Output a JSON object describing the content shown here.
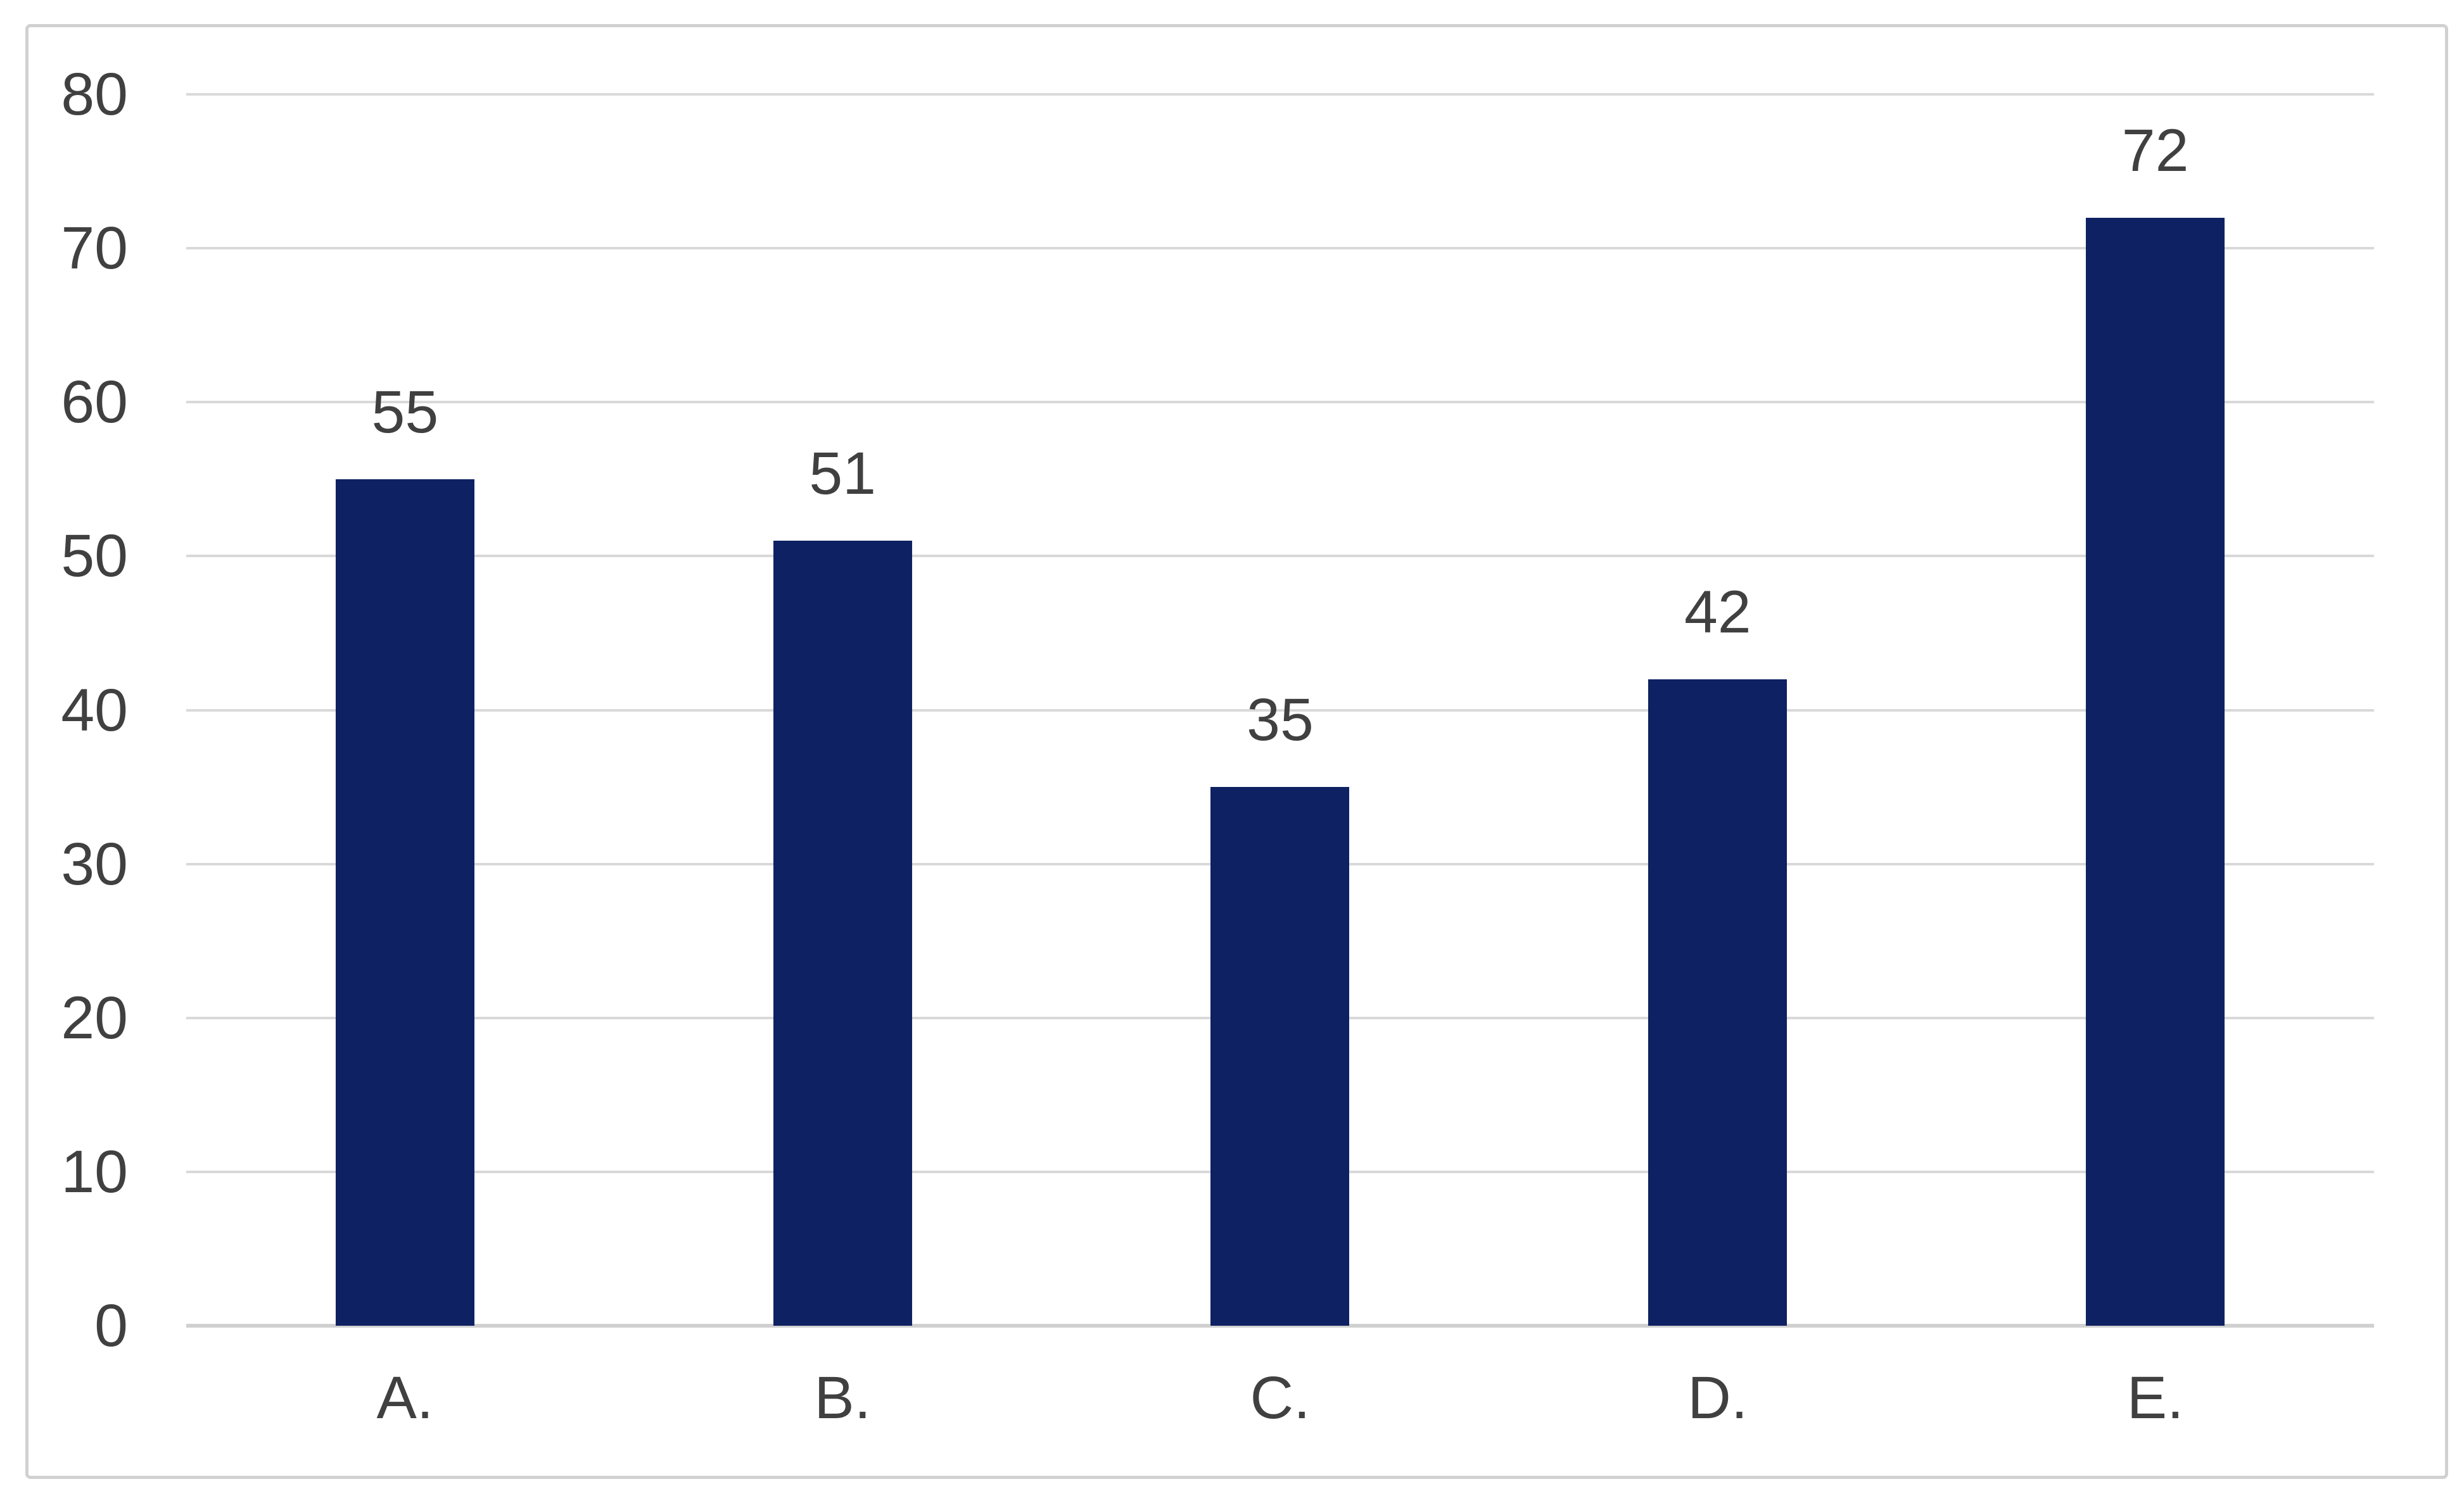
{
  "chart_data": {
    "type": "bar",
    "title": "",
    "xlabel": "",
    "ylabel": "",
    "categories": [
      "A.",
      "B.",
      "C.",
      "D.",
      "E."
    ],
    "series": [
      {
        "name": "",
        "values": [
          55,
          51,
          35,
          42,
          72
        ]
      }
    ],
    "data_labels_shown": true,
    "data_labels": [
      "55",
      "51",
      "35",
      "42",
      "72"
    ],
    "ylim": [
      0,
      80
    ],
    "yticks": [
      0,
      10,
      20,
      30,
      40,
      50,
      60,
      70,
      80
    ],
    "ytick_labels": [
      "0",
      "10",
      "20",
      "30",
      "40",
      "50",
      "60",
      "70",
      "80"
    ],
    "grid": true,
    "legend_shown": false
  },
  "colors": {
    "bar_fill": "#0e2163",
    "gridline": "#d9d9d9",
    "axis_line": "#d0d0d0",
    "text": "#404040",
    "frame_border": "#d1d1d1",
    "background": "#ffffff"
  }
}
